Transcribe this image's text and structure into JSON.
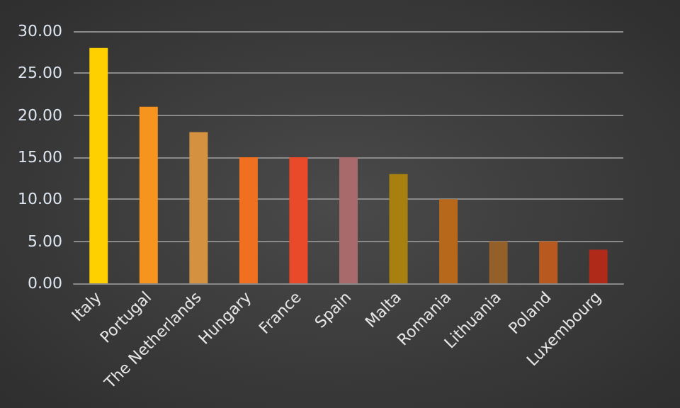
{
  "chart_data": {
    "type": "bar",
    "categories": [
      "Italy",
      "Portugal",
      "The Netherlands",
      "Hungary",
      "France",
      "Spain",
      "Malta",
      "Romania",
      "Lithuania",
      "Poland",
      "Luxembourg"
    ],
    "values": [
      28,
      21,
      18,
      15,
      15,
      15,
      13,
      10,
      5,
      5,
      4
    ],
    "colors": [
      "#ffd000",
      "#f7941d",
      "#d4913f",
      "#f07020",
      "#e84a2a",
      "#a86a6a",
      "#a88010",
      "#b8681a",
      "#94602a",
      "#b85a20",
      "#b02a1a"
    ],
    "ylim": [
      0,
      30
    ],
    "yticks": [
      {
        "value": 0,
        "label": "0.00"
      },
      {
        "value": 5,
        "label": "5.00"
      },
      {
        "value": 10,
        "label": "10.00"
      },
      {
        "value": 15,
        "label": "15.00"
      },
      {
        "value": 20,
        "label": "20.00"
      },
      {
        "value": 25,
        "label": "25.00"
      },
      {
        "value": 30,
        "label": "30.00"
      }
    ],
    "grid": true
  }
}
